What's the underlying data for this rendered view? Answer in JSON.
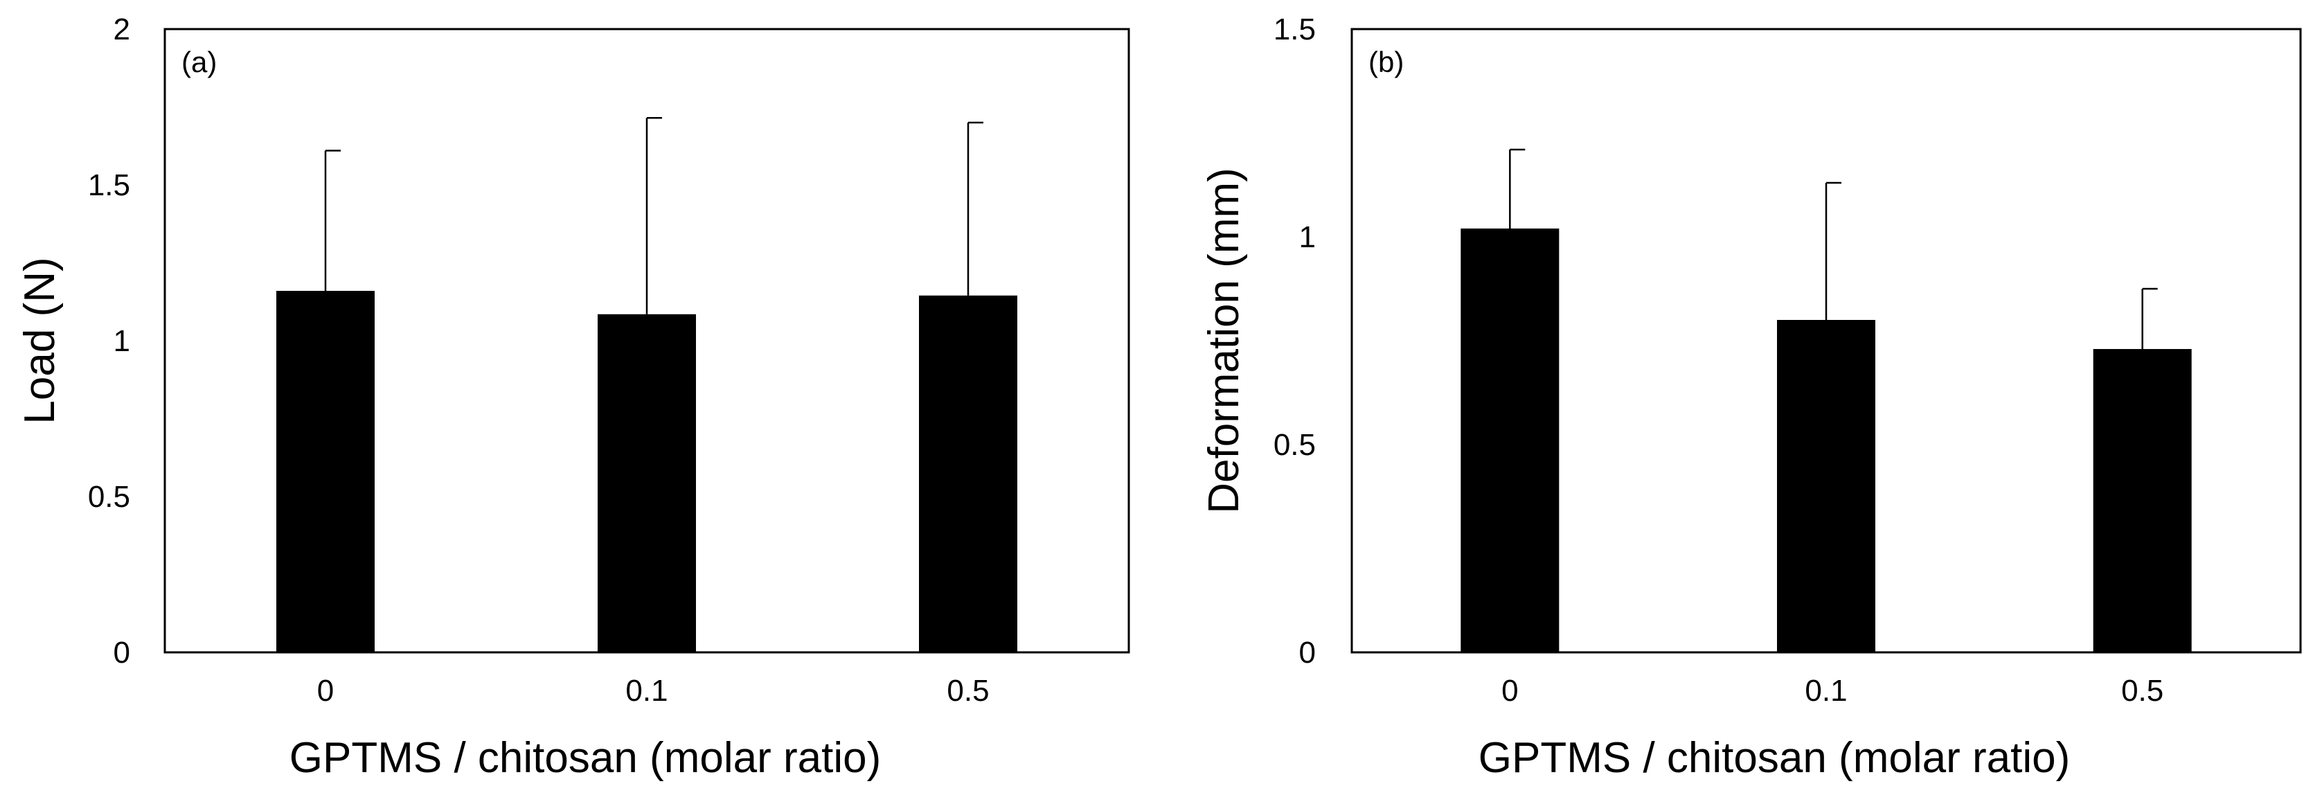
{
  "chart_data": [
    {
      "type": "bar",
      "panel_label": "(a)",
      "categories": [
        "0",
        "0.1",
        "0.5"
      ],
      "values": [
        1.16,
        1.085,
        1.145
      ],
      "error_bars": [
        0.45,
        0.63,
        0.555
      ],
      "xlabel": "GPTMS / chitosan (molar ratio)",
      "ylabel": "Load (N)",
      "ylim": [
        0,
        2
      ],
      "yticks": [
        "0",
        "0.5",
        "1",
        "1.5",
        "2"
      ],
      "ytick_values": [
        0,
        0.5,
        1,
        1.5,
        2
      ],
      "grid": false,
      "bar_color": "#000000"
    },
    {
      "type": "bar",
      "panel_label": "(b)",
      "categories": [
        "0",
        "0.1",
        "0.5"
      ],
      "values": [
        1.02,
        0.8,
        0.73
      ],
      "error_bars": [
        0.19,
        0.33,
        0.145
      ],
      "xlabel": "GPTMS / chitosan (molar ratio)",
      "ylabel": "Deformation (mm)",
      "ylim": [
        0,
        1.5
      ],
      "yticks": [
        "0",
        "0.5",
        "1",
        "1.5"
      ],
      "ytick_values": [
        0,
        0.5,
        1,
        1.5
      ],
      "grid": false,
      "bar_color": "#000000"
    }
  ]
}
